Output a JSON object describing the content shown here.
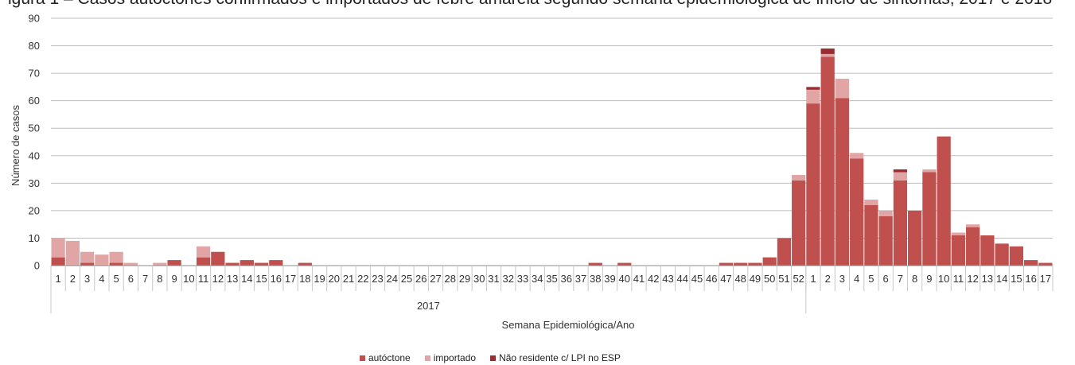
{
  "page": {
    "title_fragment": "igura 1 – Casos autóctones confirmados e importados de febre amarela segundo semana epidemiológica de início de sintomas, 2017 e 2018"
  },
  "chart_data": {
    "type": "bar",
    "stacked": true,
    "title": "",
    "xlabel": "Semana Epidemiológica/Ano",
    "ylabel": "Número de casos",
    "ylim": [
      0,
      90
    ],
    "yticks": [
      0,
      10,
      20,
      30,
      40,
      50,
      60,
      70,
      80,
      90
    ],
    "grid": true,
    "legend_position": "bottom",
    "year_groups": [
      {
        "label": "2017",
        "count": 52
      },
      {
        "label": "",
        "count": 17
      }
    ],
    "categories": [
      "1",
      "2",
      "3",
      "4",
      "5",
      "6",
      "7",
      "8",
      "9",
      "10",
      "11",
      "12",
      "13",
      "14",
      "15",
      "16",
      "17",
      "18",
      "19",
      "20",
      "21",
      "22",
      "23",
      "24",
      "25",
      "26",
      "27",
      "28",
      "29",
      "30",
      "31",
      "32",
      "33",
      "34",
      "35",
      "36",
      "37",
      "38",
      "39",
      "40",
      "41",
      "42",
      "43",
      "44",
      "45",
      "46",
      "47",
      "48",
      "49",
      "50",
      "51",
      "52",
      "1",
      "2",
      "3",
      "4",
      "5",
      "6",
      "7",
      "8",
      "9",
      "10",
      "11",
      "12",
      "13",
      "14",
      "15",
      "16",
      "17"
    ],
    "series": [
      {
        "name": "autóctone",
        "color": "#c0504d",
        "values": [
          3,
          0,
          1,
          0,
          1,
          0,
          0,
          0,
          2,
          0,
          3,
          5,
          1,
          2,
          1,
          2,
          0,
          1,
          0,
          0,
          0,
          0,
          0,
          0,
          0,
          0,
          0,
          0,
          0,
          0,
          0,
          0,
          0,
          0,
          0,
          0,
          0,
          1,
          0,
          1,
          0,
          0,
          0,
          0,
          0,
          0,
          1,
          1,
          1,
          3,
          10,
          31,
          59,
          76,
          61,
          39,
          22,
          18,
          31,
          20,
          34,
          47,
          11,
          14,
          11,
          8,
          7,
          2,
          1
        ]
      },
      {
        "name": "importado",
        "color": "#e0a5a4",
        "values": [
          7,
          9,
          4,
          4,
          4,
          1,
          0,
          1,
          0,
          0,
          4,
          0,
          0,
          0,
          0,
          0,
          0,
          0,
          0,
          0,
          0,
          0,
          0,
          0,
          0,
          0,
          0,
          0,
          0,
          0,
          0,
          0,
          0,
          0,
          0,
          0,
          0,
          0,
          0,
          0,
          0,
          0,
          0,
          0,
          0,
          0,
          0,
          0,
          0,
          0,
          0,
          2,
          5,
          1,
          7,
          2,
          2,
          2,
          3,
          0,
          1,
          0,
          1,
          1,
          0,
          0,
          0,
          0,
          0
        ]
      },
      {
        "name": "Não residente c/ LPI no ESP",
        "color": "#9b2d30",
        "values": [
          0,
          0,
          0,
          0,
          0,
          0,
          0,
          0,
          0,
          0,
          0,
          0,
          0,
          0,
          0,
          0,
          0,
          0,
          0,
          0,
          0,
          0,
          0,
          0,
          0,
          0,
          0,
          0,
          0,
          0,
          0,
          0,
          0,
          0,
          0,
          0,
          0,
          0,
          0,
          0,
          0,
          0,
          0,
          0,
          0,
          0,
          0,
          0,
          0,
          0,
          0,
          0,
          1,
          2,
          0,
          0,
          0,
          0,
          1,
          0,
          0,
          0,
          0,
          0,
          0,
          0,
          0,
          0,
          0
        ]
      }
    ]
  }
}
